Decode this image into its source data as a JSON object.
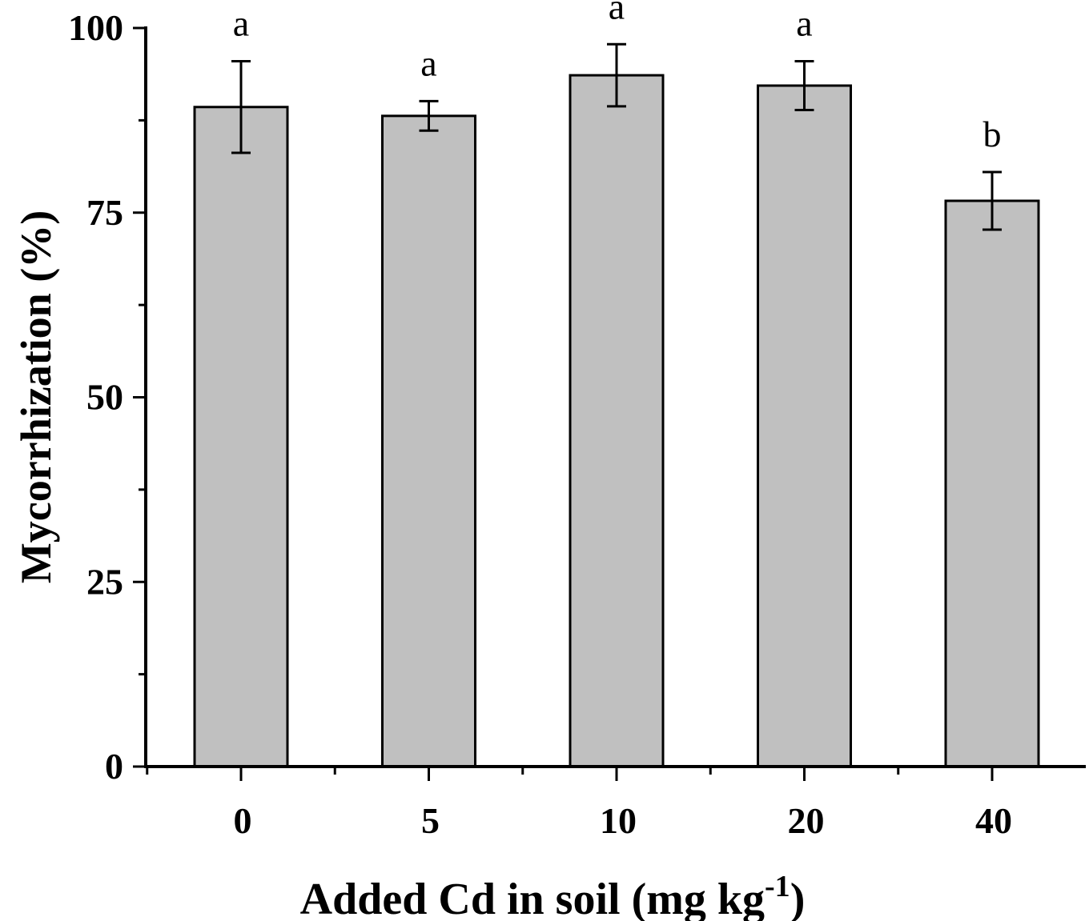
{
  "chart_data": {
    "type": "bar",
    "categories": [
      "0",
      "5",
      "10",
      "20",
      "40"
    ],
    "values": [
      89.3,
      88.1,
      93.6,
      92.2,
      76.6
    ],
    "errors": [
      6.2,
      2.0,
      4.2,
      3.3,
      3.9
    ],
    "significance": [
      "a",
      "a",
      "a",
      "a",
      "b"
    ],
    "xlabel": "Added Cd in soil (mg kg",
    "xlabel_sup": "-1",
    "xlabel_close": ")",
    "ylabel": "Mycorrhization (%)",
    "ylim": [
      0,
      100
    ],
    "yticks": [
      0,
      25,
      50,
      75,
      100
    ],
    "grid": false,
    "bar_color": "#c0c0c0",
    "edge_color": "#000000"
  }
}
